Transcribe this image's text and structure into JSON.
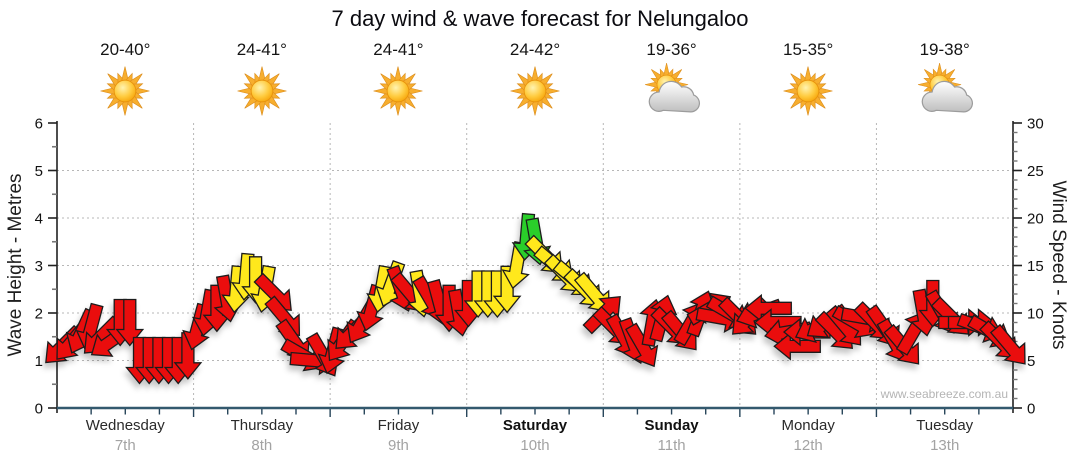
{
  "title": "7 day wind & wave forecast for Nelungaloo",
  "watermark": "www.seabreeze.com.au",
  "days": [
    {
      "name": "Wednesday",
      "date": "7th",
      "temp": "20-40°",
      "icon": "sunny",
      "bold": false
    },
    {
      "name": "Thursday",
      "date": "8th",
      "temp": "24-41°",
      "icon": "sunny",
      "bold": false
    },
    {
      "name": "Friday",
      "date": "9th",
      "temp": "24-41°",
      "icon": "sunny",
      "bold": false
    },
    {
      "name": "Saturday",
      "date": "10th",
      "temp": "24-42°",
      "icon": "sunny",
      "bold": true
    },
    {
      "name": "Sunday",
      "date": "11th",
      "temp": "19-36°",
      "icon": "partly-cloudy",
      "bold": true
    },
    {
      "name": "Monday",
      "date": "12th",
      "temp": "15-35°",
      "icon": "sunny",
      "bold": false
    },
    {
      "name": "Tuesday",
      "date": "13th",
      "temp": "19-38°",
      "icon": "partly-cloudy",
      "bold": false
    }
  ],
  "axes": {
    "left": {
      "label": "Wave Height - Metres",
      "range": [
        0,
        6
      ],
      "ticks": [
        0,
        1,
        2,
        3,
        4,
        5,
        6
      ]
    },
    "right": {
      "label": "Wind Speed - Knots",
      "range": [
        0,
        30
      ],
      "ticks": [
        0,
        5,
        10,
        15,
        20,
        25,
        30
      ]
    }
  },
  "colors": {
    "red": "#EA0B0B",
    "yellow": "#FFE81A",
    "green": "#2BCE2B",
    "arrow_outline": "#1c1c1c",
    "bottom_axis": "#33596E",
    "grid": "#b7b7b7",
    "sun": "#F7AE2E",
    "cloud": "#d4d4d4"
  },
  "chart_data": {
    "type": "scatter",
    "title": "7 day wind & wave forecast for Nelungaloo",
    "categories": [
      "Wednesday 7th",
      "Thursday 8th",
      "Friday 9th",
      "Saturday 10th",
      "Sunday 11th",
      "Monday 12th",
      "Tuesday 13th"
    ],
    "ylabel_left": "Wave Height - Metres",
    "ylabel_right": "Wind Speed - Knots",
    "ylim_left": [
      0,
      6
    ],
    "ylim_right": [
      0,
      30
    ],
    "grid": true,
    "x_unit": "hours from period start (168h total)",
    "start_hour": 0.9,
    "interval_hours": 1.7,
    "arrow_note": "each point = [wind_speed_knots, direction_deg_arrow_points (0=up/N, 90=right/E), color r|y|g]",
    "arrows": [
      [
        6.5,
        225,
        "r"
      ],
      [
        7,
        220,
        "r"
      ],
      [
        8,
        205,
        "r"
      ],
      [
        8.5,
        195,
        "r"
      ],
      [
        7.5,
        225,
        "r"
      ],
      [
        7,
        235,
        "r"
      ],
      [
        9,
        180,
        "r"
      ],
      [
        9,
        180,
        "r"
      ],
      [
        5,
        180,
        "r"
      ],
      [
        5,
        180,
        "r"
      ],
      [
        5,
        180,
        "r"
      ],
      [
        5,
        180,
        "r"
      ],
      [
        5,
        180,
        "r"
      ],
      [
        5.5,
        180,
        "r"
      ],
      [
        8.5,
        195,
        "r"
      ],
      [
        10,
        190,
        "r"
      ],
      [
        10.5,
        180,
        "r"
      ],
      [
        11.5,
        170,
        "r"
      ],
      [
        12.5,
        185,
        "y"
      ],
      [
        13.8,
        185,
        "y"
      ],
      [
        13.5,
        180,
        "y"
      ],
      [
        12.5,
        190,
        "y"
      ],
      [
        12,
        135,
        "r"
      ],
      [
        9.5,
        140,
        "r"
      ],
      [
        7,
        145,
        "r"
      ],
      [
        5.5,
        120,
        "r"
      ],
      [
        5,
        95,
        "r"
      ],
      [
        5.5,
        150,
        "r"
      ],
      [
        6,
        195,
        "r"
      ],
      [
        7,
        215,
        "r"
      ],
      [
        8,
        225,
        "r"
      ],
      [
        9,
        210,
        "r"
      ],
      [
        10.5,
        195,
        "r"
      ],
      [
        12.5,
        190,
        "y"
      ],
      [
        13,
        200,
        "y"
      ],
      [
        12.5,
        160,
        "r"
      ],
      [
        12,
        140,
        "r"
      ],
      [
        12,
        170,
        "y"
      ],
      [
        11.5,
        150,
        "r"
      ],
      [
        11,
        165,
        "r"
      ],
      [
        10.5,
        180,
        "r"
      ],
      [
        10,
        170,
        "r"
      ],
      [
        11,
        180,
        "r"
      ],
      [
        12,
        180,
        "y"
      ],
      [
        12,
        180,
        "y"
      ],
      [
        12,
        180,
        "y"
      ],
      [
        12.5,
        180,
        "y"
      ],
      [
        15,
        190,
        "y"
      ],
      [
        18,
        185,
        "g"
      ],
      [
        17.5,
        170,
        "g"
      ],
      [
        16,
        135,
        "y"
      ],
      [
        15,
        130,
        "y"
      ],
      [
        14,
        135,
        "y"
      ],
      [
        13.5,
        130,
        "y"
      ],
      [
        12.5,
        135,
        "y"
      ],
      [
        12,
        140,
        "y"
      ],
      [
        10,
        45,
        "r"
      ],
      [
        8.5,
        135,
        "r"
      ],
      [
        7.5,
        150,
        "r"
      ],
      [
        7,
        160,
        "r"
      ],
      [
        6.5,
        150,
        "r"
      ],
      [
        9,
        10,
        "r"
      ],
      [
        9.5,
        15,
        "r"
      ],
      [
        8.5,
        135,
        "r"
      ],
      [
        8,
        140,
        "r"
      ],
      [
        9,
        30,
        "r"
      ],
      [
        10,
        20,
        "r"
      ],
      [
        10.5,
        60,
        "r"
      ],
      [
        9.5,
        100,
        "r"
      ],
      [
        10,
        120,
        "r"
      ],
      [
        9.5,
        135,
        "r"
      ],
      [
        9.5,
        225,
        "r"
      ],
      [
        10,
        250,
        "r"
      ],
      [
        10.5,
        270,
        "r"
      ],
      [
        9,
        270,
        "r"
      ],
      [
        8,
        260,
        "r"
      ],
      [
        6.5,
        270,
        "r"
      ],
      [
        8,
        270,
        "r"
      ],
      [
        8.5,
        245,
        "r"
      ],
      [
        9,
        235,
        "r"
      ],
      [
        8,
        135,
        "r"
      ],
      [
        8.5,
        140,
        "r"
      ],
      [
        9,
        120,
        "r"
      ],
      [
        9.5,
        100,
        "r"
      ],
      [
        9,
        135,
        "r"
      ],
      [
        8.5,
        145,
        "r"
      ],
      [
        7,
        150,
        "r"
      ],
      [
        6.5,
        140,
        "r"
      ],
      [
        8,
        30,
        "r"
      ],
      [
        10,
        170,
        "r"
      ],
      [
        11,
        180,
        "r"
      ],
      [
        10,
        150,
        "r"
      ],
      [
        9.5,
        135,
        "r"
      ],
      [
        9,
        90,
        "r"
      ],
      [
        9,
        90,
        "r"
      ],
      [
        8.5,
        110,
        "r"
      ],
      [
        8,
        120,
        "r"
      ],
      [
        7,
        135,
        "r"
      ],
      [
        6.5,
        140,
        "r"
      ]
    ]
  }
}
